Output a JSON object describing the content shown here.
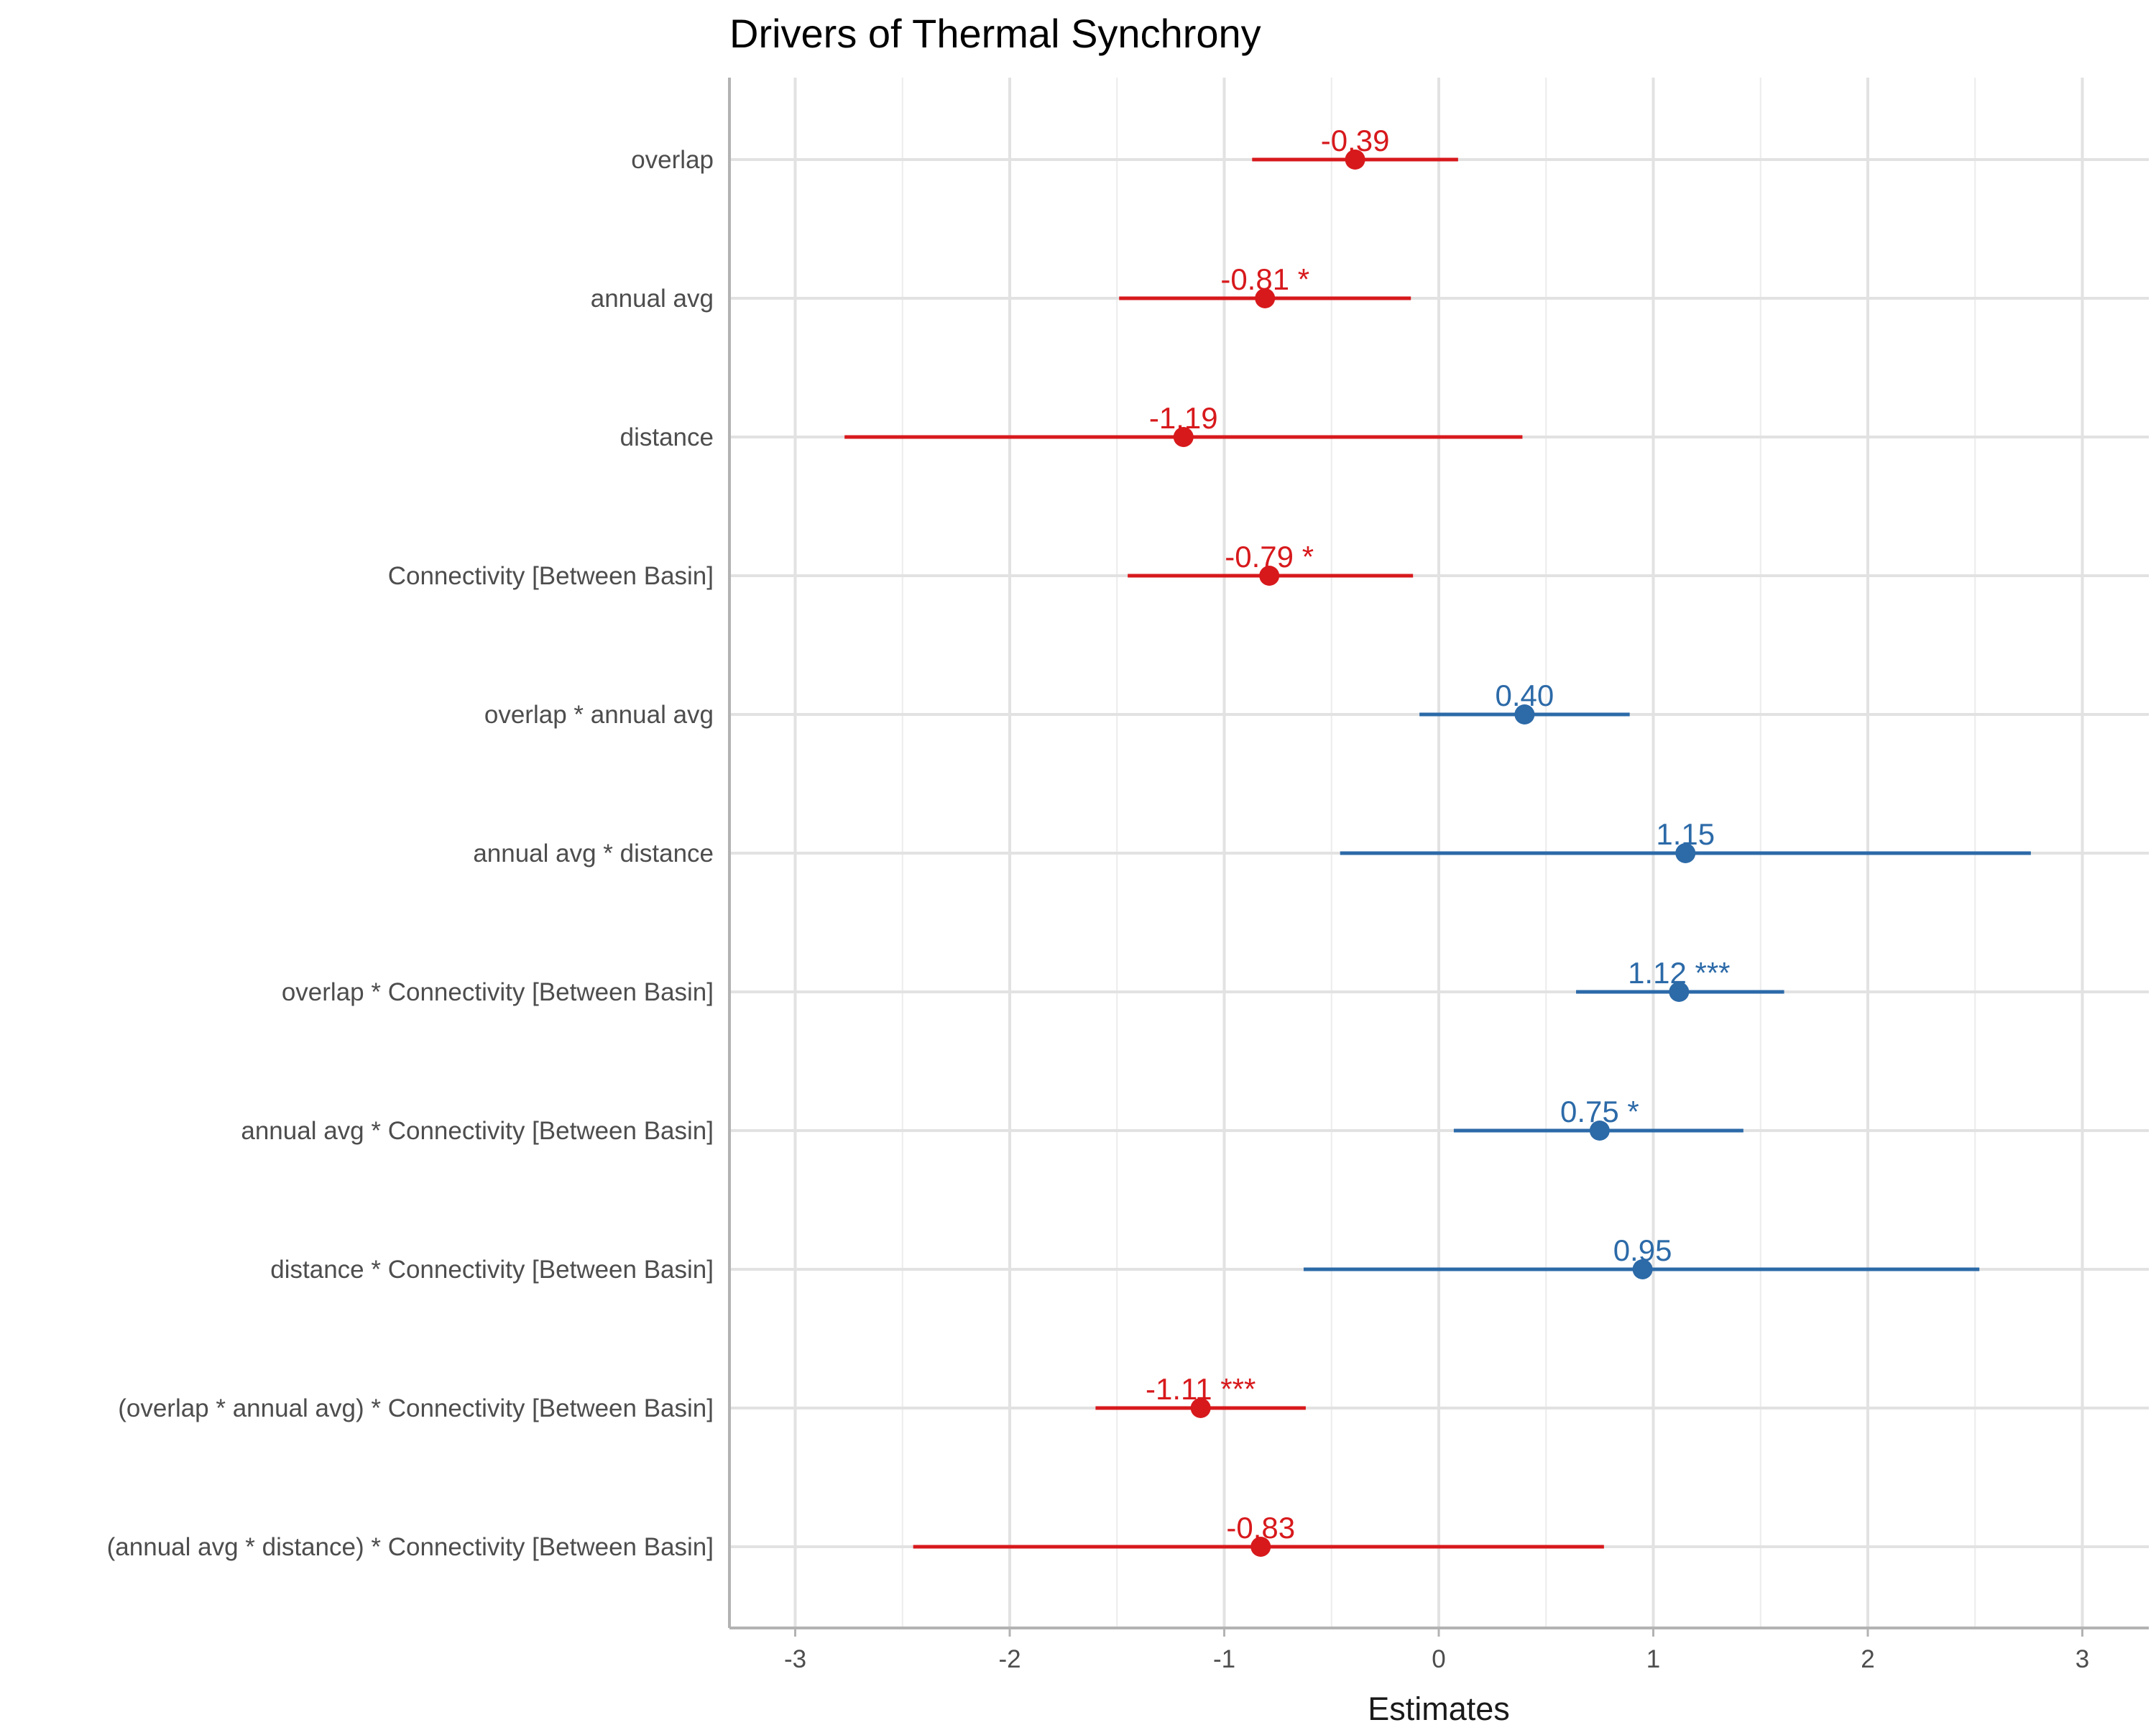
{
  "chart_data": {
    "type": "forest",
    "title": "Drivers of Thermal Synchrony",
    "xlabel": "Estimates",
    "ylabel": "",
    "xlim": [
      -3.3,
      3.3
    ],
    "xticks": [
      -3,
      -2,
      -1,
      0,
      1,
      2,
      3
    ],
    "xtick_labels": [
      "-3",
      "-2",
      "-1",
      "0",
      "1",
      "2",
      "3"
    ],
    "grid": true,
    "legend": "none",
    "colors": {
      "negative": "#d7191c",
      "positive": "#2c6aa8"
    },
    "terms": [
      {
        "term": "overlap",
        "estimate": -0.39,
        "ci_low": -0.87,
        "ci_high": 0.09,
        "label": "-0.39"
      },
      {
        "term": "annual avg",
        "estimate": -0.81,
        "ci_low": -1.49,
        "ci_high": -0.13,
        "label": "-0.81 *"
      },
      {
        "term": "distance",
        "estimate": -1.19,
        "ci_low": -2.77,
        "ci_high": 0.39,
        "label": "-1.19"
      },
      {
        "term": "Connectivity [Between Basin]",
        "estimate": -0.79,
        "ci_low": -1.45,
        "ci_high": -0.12,
        "label": "-0.79 *"
      },
      {
        "term": "overlap * annual avg",
        "estimate": 0.4,
        "ci_low": -0.09,
        "ci_high": 0.89,
        "label": "0.40"
      },
      {
        "term": "annual avg * distance",
        "estimate": 1.15,
        "ci_low": -0.46,
        "ci_high": 2.76,
        "label": "1.15"
      },
      {
        "term": "overlap * Connectivity [Between Basin]",
        "estimate": 1.12,
        "ci_low": 0.64,
        "ci_high": 1.61,
        "label": "1.12 ***"
      },
      {
        "term": "annual avg * Connectivity [Between Basin]",
        "estimate": 0.75,
        "ci_low": 0.07,
        "ci_high": 1.42,
        "label": "0.75 *"
      },
      {
        "term": "distance * Connectivity [Between Basin]",
        "estimate": 0.95,
        "ci_low": -0.63,
        "ci_high": 2.52,
        "label": "0.95"
      },
      {
        "term": "(overlap * annual avg) * Connectivity [Between Basin]",
        "estimate": -1.11,
        "ci_low": -1.6,
        "ci_high": -0.62,
        "label": "-1.11 ***"
      },
      {
        "term": "(annual avg * distance) * Connectivity [Between Basin]",
        "estimate": -0.83,
        "ci_low": -2.45,
        "ci_high": 0.77,
        "label": "-0.83"
      }
    ]
  }
}
